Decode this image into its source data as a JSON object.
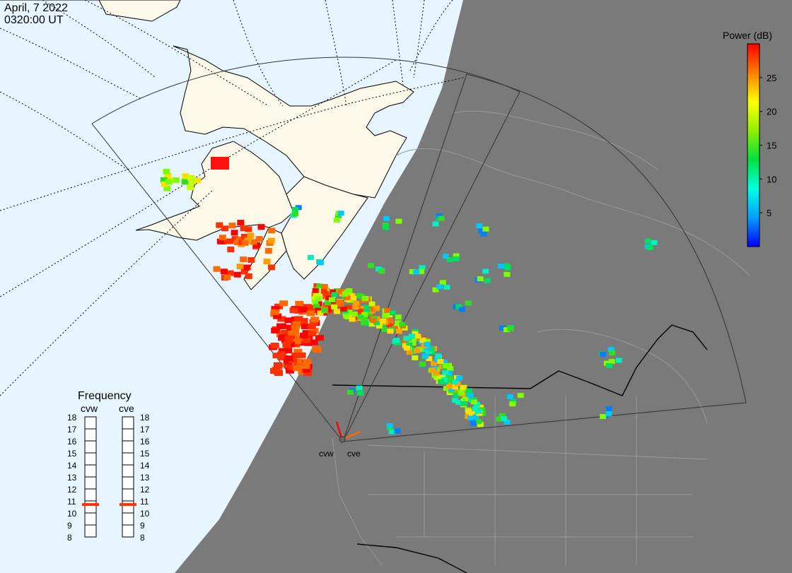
{
  "header": {
    "date": "April, 7 2022",
    "time": "0320:00 UT"
  },
  "colorbar": {
    "title": "Power (dB)",
    "ticks": [
      "5",
      "10",
      "15",
      "20",
      "25"
    ],
    "tick_values": [
      5,
      10,
      15,
      20,
      25
    ],
    "range": [
      0,
      30
    ],
    "stops": [
      "#0000ff",
      "#00a0ff",
      "#00ffe0",
      "#00e040",
      "#90f000",
      "#ffff00",
      "#ff8000",
      "#ff0000"
    ]
  },
  "frequency": {
    "title": "Frequency",
    "radars": [
      {
        "name": "cvw",
        "value": 10.7
      },
      {
        "name": "cve",
        "value": 10.7
      }
    ],
    "scale": [
      "18",
      "17",
      "16",
      "15",
      "14",
      "13",
      "12",
      "11",
      "10",
      "9",
      "8"
    ],
    "range": [
      8,
      18
    ]
  },
  "sites": [
    {
      "name": "cvw"
    },
    {
      "name": "cve"
    }
  ],
  "colors": {
    "ocean": "#e6f5ff",
    "land": "#fdf9e8",
    "night": "#7a7a7a",
    "marker": "#ff3300"
  }
}
